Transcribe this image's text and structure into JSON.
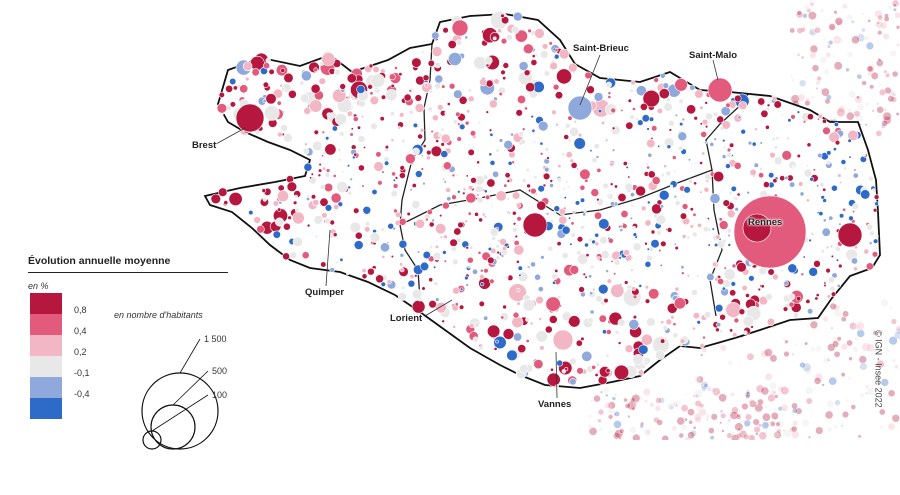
{
  "legend": {
    "title": "Évolution annuelle moyenne",
    "color_unit": "en %",
    "color_classes": [
      {
        "label": "0,8",
        "color": "#b5173f"
      },
      {
        "label": "0,4",
        "color": "#e25a7c"
      },
      {
        "label": "0,2",
        "color": "#f3b6c4"
      },
      {
        "label": "-0,1",
        "color": "#e8e8e8"
      },
      {
        "label": "-0,4",
        "color": "#8fa9dc"
      },
      {
        "label": "",
        "color": "#2e6bc9"
      }
    ],
    "size_unit": "en nombre d'habitants",
    "size_classes": [
      {
        "label": "1 500",
        "value": 1500
      },
      {
        "label": "500",
        "value": 500
      },
      {
        "label": "100",
        "value": 100
      }
    ]
  },
  "cities": [
    {
      "name": "Brest"
    },
    {
      "name": "Saint-Brieuc"
    },
    {
      "name": "Saint-Malo"
    },
    {
      "name": "Rennes"
    },
    {
      "name": "Quimper"
    },
    {
      "name": "Lorient"
    },
    {
      "name": "Vannes"
    }
  ],
  "credit": "© IGN - Insee 2022"
}
